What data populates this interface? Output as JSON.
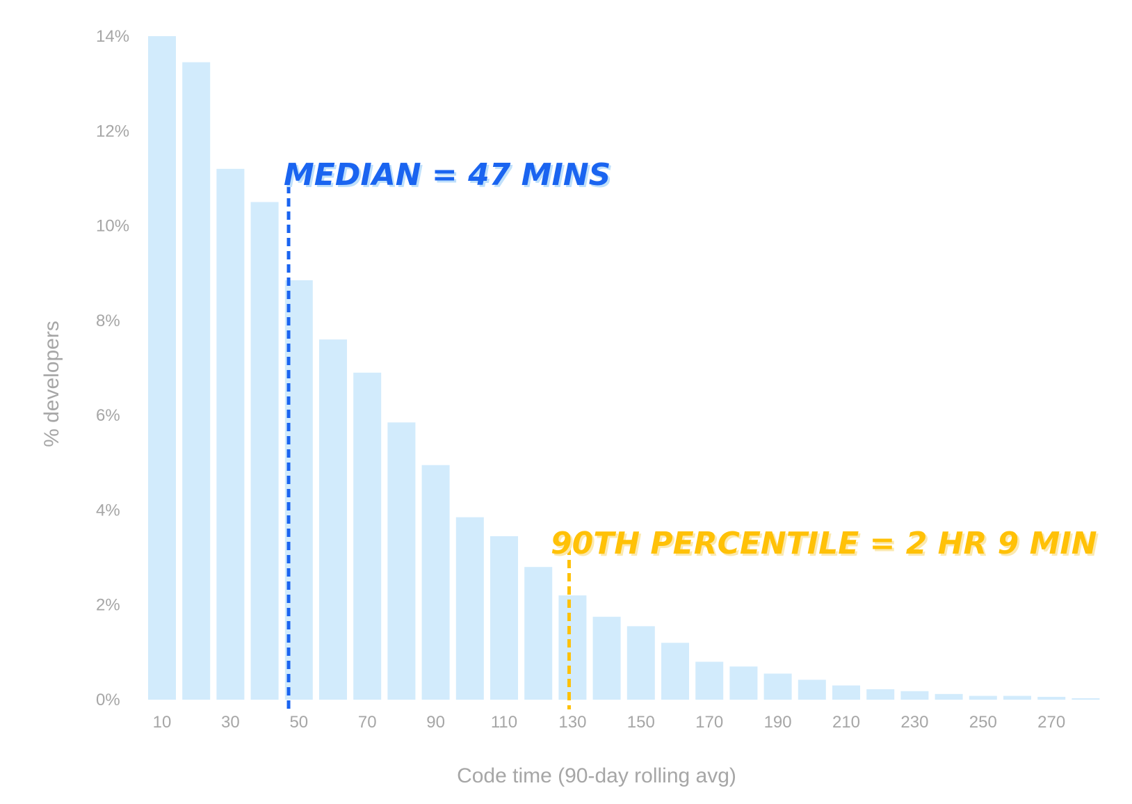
{
  "chart_data": {
    "type": "bar",
    "xlabel": "Code time (90-day rolling avg)",
    "ylabel": "% developers",
    "x": [
      10,
      20,
      30,
      40,
      50,
      60,
      70,
      80,
      90,
      100,
      110,
      120,
      130,
      140,
      150,
      160,
      170,
      180,
      190,
      200,
      210,
      220,
      230,
      240,
      250,
      260,
      270,
      280
    ],
    "values": [
      14.0,
      13.45,
      11.2,
      10.5,
      8.85,
      7.6,
      6.9,
      5.85,
      4.95,
      3.85,
      3.45,
      2.8,
      2.2,
      1.75,
      1.55,
      1.2,
      0.8,
      0.7,
      0.55,
      0.42,
      0.3,
      0.22,
      0.18,
      0.12,
      0.08,
      0.08,
      0.06,
      0.03
    ],
    "x_tick_labels": [
      "10",
      "30",
      "50",
      "70",
      "90",
      "110",
      "130",
      "150",
      "170",
      "190",
      "210",
      "230",
      "250",
      "270"
    ],
    "y_tick_labels": [
      "0%",
      "2%",
      "4%",
      "6%",
      "8%",
      "10%",
      "12%",
      "14%"
    ],
    "ylim": [
      0,
      14
    ],
    "grid": false,
    "bar_color": "#d2ebfc",
    "annotations": [
      {
        "text": "MEDIAN = 47 MINS",
        "x": 47,
        "color": "#1a64f0",
        "shadow": "#bfe0fb"
      },
      {
        "text": "90TH PERCENTILE = 2 HR 9 MIN",
        "x": 129,
        "color": "#ffc107",
        "shadow": "#fbe9b0"
      }
    ]
  }
}
